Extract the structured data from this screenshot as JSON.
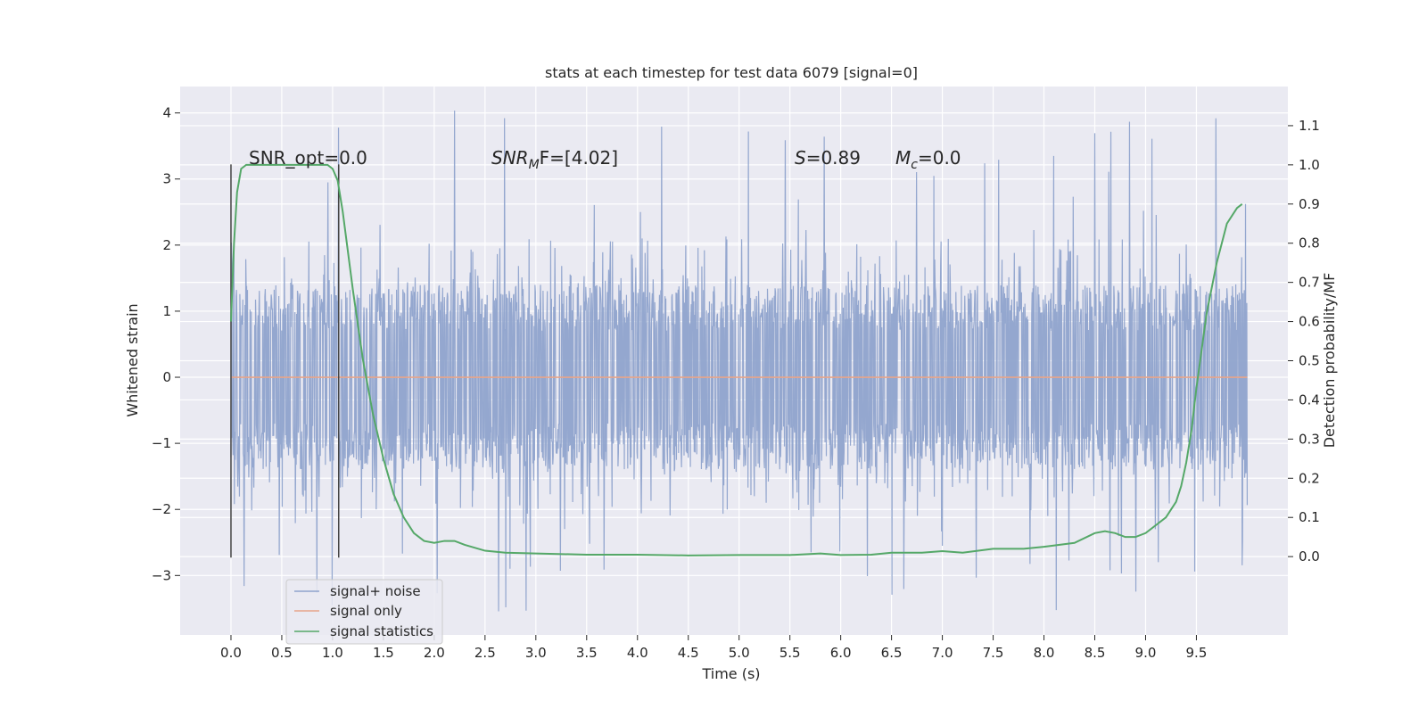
{
  "chart_data": {
    "type": "line",
    "title": "stats at each timestep for test data 6079 [signal=0]",
    "xlabel": "Time (s)",
    "ylabel": "Whitened strain",
    "ylabel_right": "Detection probability/MF",
    "xlim": [
      -0.5,
      10.4
    ],
    "ylim": [
      -3.9,
      4.4
    ],
    "ylim_right": [
      -0.2,
      1.2
    ],
    "x_ticks": [
      "0.0",
      "0.5",
      "1.0",
      "1.5",
      "2.0",
      "2.5",
      "3.0",
      "3.5",
      "4.0",
      "4.5",
      "5.0",
      "5.5",
      "6.0",
      "6.5",
      "7.0",
      "7.5",
      "8.0",
      "8.5",
      "9.0",
      "9.5"
    ],
    "y_ticks": [
      "4",
      "3",
      "2",
      "1",
      "0",
      "−1",
      "−2",
      "−3"
    ],
    "y_ticks_right": [
      "1.1",
      "1.0",
      "0.9",
      "0.8",
      "0.7",
      "0.6",
      "0.5",
      "0.4",
      "0.3",
      "0.2",
      "0.1",
      "0.0"
    ],
    "grid": true,
    "legend_position": "bottom-left",
    "annotations": {
      "snr_opt": {
        "text": "SNR_opt=0.0"
      },
      "snr_mf": {
        "base": "SNR",
        "sub": "M",
        "tail": "F=[4.02]"
      },
      "s": {
        "base": "S",
        "tail": "=0.89"
      },
      "mc": {
        "base": "M",
        "sub": "c",
        "tail": "=0.0"
      }
    },
    "vertical_lines": [
      0.0,
      1.06
    ],
    "vertical_line_range": [
      -2.73,
      3.22
    ],
    "series": [
      {
        "name": "signal+ noise",
        "color": "#8fa3cc",
        "t_range": [
          0.0,
          10.0
        ],
        "typical_range": [
          -1.4,
          1.4
        ],
        "extreme_range": [
          -3.55,
          4.05
        ]
      },
      {
        "name": "signal only",
        "color": "#e8a589",
        "x": [
          0.0,
          10.0
        ],
        "y": [
          0.0,
          0.0
        ]
      },
      {
        "name": "signal statistics",
        "color": "#55a868",
        "x": [
          0.0,
          0.03,
          0.06,
          0.1,
          0.15,
          0.2,
          0.3,
          0.5,
          0.7,
          0.85,
          0.95,
          1.0,
          1.05,
          1.1,
          1.15,
          1.2,
          1.3,
          1.4,
          1.5,
          1.6,
          1.7,
          1.8,
          1.9,
          2.0,
          2.1,
          2.2,
          2.3,
          2.5,
          2.7,
          3.0,
          3.5,
          4.0,
          4.5,
          5.0,
          5.5,
          5.8,
          6.0,
          6.3,
          6.5,
          6.8,
          7.0,
          7.2,
          7.5,
          7.8,
          8.0,
          8.3,
          8.5,
          8.6,
          8.7,
          8.8,
          8.9,
          9.0,
          9.1,
          9.2,
          9.3,
          9.35,
          9.4,
          9.45,
          9.5,
          9.6,
          9.7,
          9.8,
          9.85,
          9.9,
          9.95
        ],
        "y": [
          0.6,
          0.8,
          0.93,
          0.99,
          1.0,
          1.0,
          1.0,
          1.0,
          1.0,
          1.0,
          1.0,
          0.99,
          0.96,
          0.88,
          0.78,
          0.68,
          0.5,
          0.36,
          0.25,
          0.16,
          0.1,
          0.06,
          0.04,
          0.035,
          0.04,
          0.04,
          0.03,
          0.015,
          0.01,
          0.008,
          0.005,
          0.005,
          0.003,
          0.004,
          0.004,
          0.008,
          0.004,
          0.005,
          0.01,
          0.01,
          0.014,
          0.01,
          0.02,
          0.02,
          0.025,
          0.035,
          0.06,
          0.065,
          0.06,
          0.05,
          0.05,
          0.06,
          0.08,
          0.1,
          0.14,
          0.18,
          0.24,
          0.32,
          0.43,
          0.62,
          0.75,
          0.85,
          0.87,
          0.89,
          0.9
        ]
      }
    ]
  }
}
